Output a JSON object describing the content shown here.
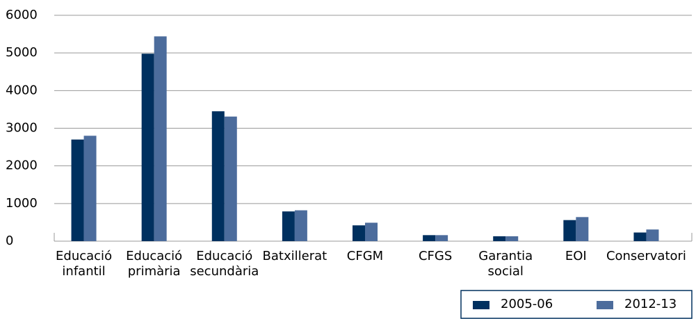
{
  "chart_data": {
    "type": "bar",
    "categories": [
      "Educació infantil",
      "Educació primària",
      "Educació secundària",
      "Batxillerat",
      "CFGM",
      "CFGS",
      "Garantia social",
      "EOI",
      "Conservatori"
    ],
    "series": [
      {
        "name": "2005-06",
        "color": "#00305f",
        "values": [
          2700,
          4980,
          3450,
          790,
          420,
          160,
          130,
          560,
          230
        ]
      },
      {
        "name": "2012-13",
        "color": "#4c6c9c",
        "values": [
          2800,
          5440,
          3310,
          820,
          490,
          160,
          130,
          640,
          310
        ]
      }
    ],
    "ylim": [
      0,
      6000
    ],
    "yticks": [
      0,
      1000,
      2000,
      3000,
      4000,
      5000,
      6000
    ],
    "grid": true,
    "legend": "bottom-right"
  }
}
